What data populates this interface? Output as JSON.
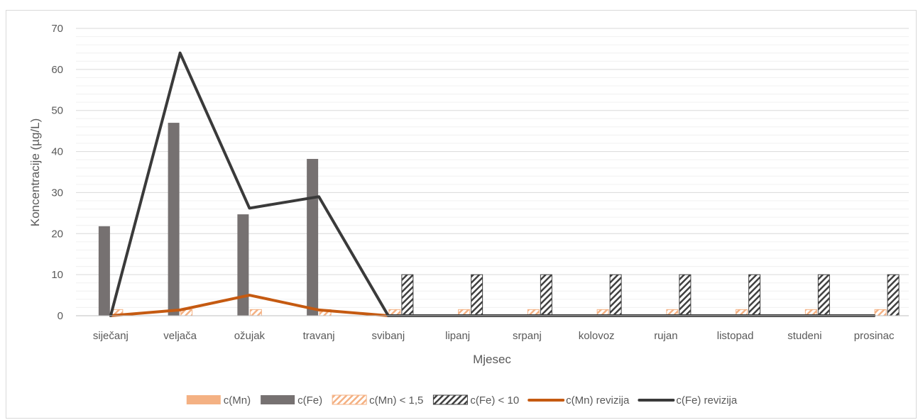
{
  "chart_data": {
    "type": "bar",
    "title": "",
    "xlabel": "Mjesec",
    "ylabel": "Koncentracije (µg/L)",
    "ylim": [
      0,
      70
    ],
    "yticks": [
      0,
      10,
      20,
      30,
      40,
      50,
      60,
      70
    ],
    "minor_gridlines": true,
    "categories": [
      "siječanj",
      "veljača",
      "ožujak",
      "travanj",
      "svibanj",
      "lipanj",
      "srpanj",
      "kolovoz",
      "rujan",
      "listopad",
      "studeni",
      "prosinac"
    ],
    "series": [
      {
        "name": "c(Mn)",
        "kind": "bar",
        "style": "solid",
        "color": "#f4b183",
        "values": [
          null,
          null,
          null,
          null,
          null,
          null,
          null,
          null,
          null,
          null,
          null,
          null
        ]
      },
      {
        "name": "c(Fe)",
        "kind": "bar",
        "style": "solid",
        "color": "#767171",
        "values": [
          21.8,
          47,
          24.7,
          38.2,
          null,
          null,
          null,
          null,
          null,
          null,
          null,
          null
        ]
      },
      {
        "name": "c(Mn) < 1,5",
        "kind": "bar",
        "style": "hatched",
        "color": "#f4b183",
        "values": [
          1.5,
          1.5,
          1.5,
          1.5,
          1.5,
          1.5,
          1.5,
          1.5,
          1.5,
          1.5,
          1.5,
          1.5
        ]
      },
      {
        "name": "c(Fe) < 10",
        "kind": "bar",
        "style": "hatched",
        "color": "#404040",
        "values": [
          null,
          null,
          null,
          null,
          10,
          10,
          10,
          10,
          10,
          10,
          10,
          10
        ]
      },
      {
        "name": "c(Mn) revizija",
        "kind": "line",
        "color": "#c55a11",
        "values": [
          0,
          1.4,
          5,
          1.4,
          0,
          0,
          0,
          0,
          0,
          0,
          0,
          0
        ]
      },
      {
        "name": "c(Fe) revizija",
        "kind": "line",
        "color": "#3a3a3a",
        "values": [
          0,
          64,
          26.2,
          29,
          0,
          0,
          0,
          0,
          0,
          0,
          0,
          0
        ]
      }
    ],
    "legend_position": "bottom"
  }
}
